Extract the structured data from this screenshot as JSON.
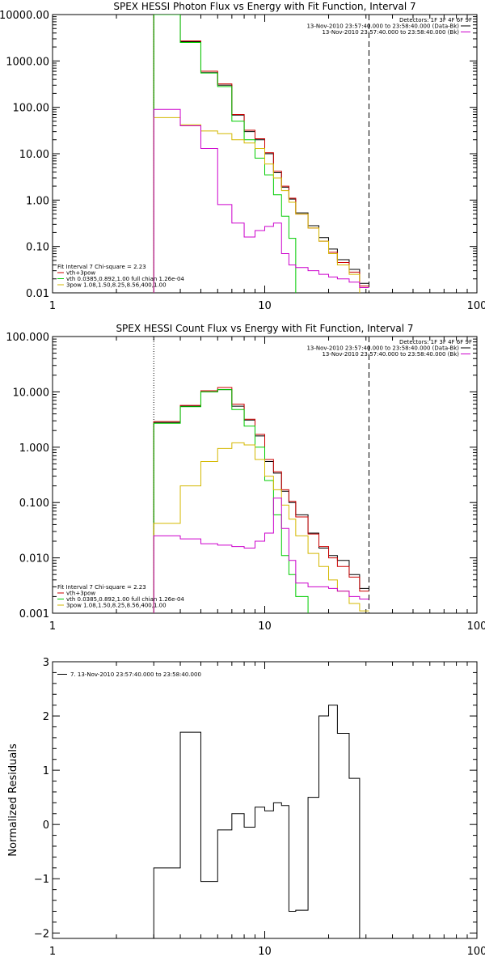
{
  "colors": {
    "black": "#000000",
    "red": "#cc0000",
    "green": "#00cc00",
    "yellow": "#d4b800",
    "magenta": "#cc00cc",
    "background": "#ffffff"
  },
  "chart_data": [
    {
      "type": "line",
      "title": "SPEX HESSI Photon Flux vs Energy with Fit Function, Interval 7",
      "xscale": "log",
      "yscale": "log",
      "xlim": [
        1,
        100
      ],
      "ylim": [
        0.01,
        10000
      ],
      "xticks": [
        {
          "v": 1,
          "label": "1"
        },
        {
          "v": 10,
          "label": "10"
        },
        {
          "v": 100,
          "label": "100"
        }
      ],
      "yticks": [
        {
          "v": 10000,
          "label": "10000.00"
        },
        {
          "v": 1000,
          "label": "1000.00"
        },
        {
          "v": 100,
          "label": "100.00"
        },
        {
          "v": 10,
          "label": "10.00"
        },
        {
          "v": 1,
          "label": "1.00"
        },
        {
          "v": 0.1,
          "label": "0.10"
        },
        {
          "v": 0.01,
          "label": "0.01"
        }
      ],
      "vlines": [
        {
          "x": 3,
          "style": "dotted"
        },
        {
          "x": 31,
          "style": "dashed"
        }
      ],
      "header_lines": [
        "Detectors: 1F 3F 4F 6F 9F",
        "13-Nov-2010 23:57:40.000 to 23:58:40.000 (Data-Bk)",
        "13-Nov-2010 23:57:40.000 to 23:58:40.000 (Bk)"
      ],
      "header_colors": [
        "",
        "black",
        "magenta"
      ],
      "legend": [
        "Fit Interval  7    Chi-square = 2.23",
        "vth+3pow",
        "vth 0.0385,0.892,1.00  full chian 1.26e-04",
        "3pow 1.08,1.50,8.25,8.56,400,1.00"
      ],
      "legend_colors": [
        "",
        "red",
        "green",
        "yellow"
      ],
      "edges": [
        3,
        4,
        5,
        6,
        7,
        8,
        9,
        10,
        11,
        12,
        13,
        14,
        16,
        18,
        20,
        22,
        25,
        28,
        31
      ],
      "series": [
        {
          "color": "black",
          "values": [
            10000,
            2600,
            560,
            300,
            68,
            30,
            20,
            10,
            3.9,
            1.9,
            1.05,
            0.53,
            0.28,
            0.155,
            0.088,
            0.052,
            0.032,
            0.016
          ]
        },
        {
          "color": "red",
          "values": [
            10000,
            2700,
            600,
            320,
            70,
            32,
            21,
            10.5,
            4.2,
            2.0,
            1.1,
            0.5,
            0.25,
            0.13,
            0.075,
            0.045,
            0.028,
            0.014
          ]
        },
        {
          "color": "green",
          "values": [
            10000,
            2500,
            550,
            280,
            50,
            20,
            8,
            3.5,
            1.3,
            0.45,
            0.15,
            0.008,
            0.008,
            0.008,
            0.008,
            0.008,
            0.008,
            0.008
          ]
        },
        {
          "color": "yellow",
          "values": [
            60,
            42,
            31,
            27,
            20,
            17,
            13,
            6,
            3,
            1.6,
            0.9,
            0.5,
            0.25,
            0.13,
            0.07,
            0.04,
            0.025,
            0.009
          ]
        },
        {
          "color": "magenta",
          "values": [
            90,
            40,
            13,
            0.8,
            0.32,
            0.16,
            0.22,
            0.27,
            0.32,
            0.07,
            0.04,
            0.035,
            0.03,
            0.025,
            0.022,
            0.02,
            0.017,
            0.013
          ]
        }
      ]
    },
    {
      "type": "line",
      "title": "SPEX HESSI Count Flux vs Energy with Fit Function, Interval 7",
      "xscale": "log",
      "yscale": "log",
      "xlim": [
        1,
        100
      ],
      "ylim": [
        0.001,
        100
      ],
      "xticks": [
        {
          "v": 1,
          "label": "1"
        },
        {
          "v": 10,
          "label": "10"
        },
        {
          "v": 100,
          "label": "100"
        }
      ],
      "yticks": [
        {
          "v": 100,
          "label": "100.000"
        },
        {
          "v": 10,
          "label": "10.000"
        },
        {
          "v": 1,
          "label": "1.000"
        },
        {
          "v": 0.1,
          "label": "0.100"
        },
        {
          "v": 0.01,
          "label": "0.010"
        },
        {
          "v": 0.001,
          "label": "0.001"
        }
      ],
      "vlines": [
        {
          "x": 3,
          "style": "dotted"
        },
        {
          "x": 31,
          "style": "dashed"
        }
      ],
      "header_lines": [
        "Detectors: 1F 3F 4F 6F 9F",
        "13-Nov-2010 23:57:40.000 to 23:58:40.000 (Data-Bk)",
        "13-Nov-2010 23:57:40.000 to 23:58:40.000 (Bk)"
      ],
      "header_colors": [
        "",
        "black",
        "magenta"
      ],
      "legend": [
        "Fit Interval  7    Chi-square = 2.23",
        "vth+3pow",
        "vth 0.0385,0.892,1.00  full chian 1.26e-04",
        "3pow 1.08,1.50,8.25,8.56,400,1.00"
      ],
      "legend_colors": [
        "",
        "red",
        "green",
        "yellow"
      ],
      "edges": [
        3,
        4,
        5,
        6,
        7,
        8,
        9,
        10,
        11,
        12,
        13,
        14,
        16,
        18,
        20,
        22,
        25,
        28,
        31
      ],
      "series": [
        {
          "color": "black",
          "values": [
            2.8,
            5.5,
            10,
            11,
            5.5,
            3.1,
            1.6,
            0.55,
            0.34,
            0.16,
            0.1,
            0.06,
            0.028,
            0.015,
            0.011,
            0.009,
            0.005,
            0.0028
          ]
        },
        {
          "color": "red",
          "values": [
            2.9,
            5.7,
            10.5,
            12,
            6,
            3.2,
            1.7,
            0.6,
            0.36,
            0.17,
            0.105,
            0.055,
            0.027,
            0.016,
            0.01,
            0.007,
            0.0045,
            0.0025
          ]
        },
        {
          "color": "green",
          "values": [
            2.7,
            5.4,
            10,
            11,
            4.8,
            2.4,
            1.0,
            0.25,
            0.06,
            0.011,
            0.005,
            0.002,
            0.0008,
            0.0008,
            0.0008,
            0.0008,
            0.0008,
            0.0008
          ]
        },
        {
          "color": "yellow",
          "values": [
            0.042,
            0.2,
            0.55,
            0.95,
            1.2,
            1.1,
            0.6,
            0.3,
            0.17,
            0.09,
            0.05,
            0.025,
            0.012,
            0.007,
            0.004,
            0.0025,
            0.0015,
            0.0011
          ]
        },
        {
          "color": "magenta",
          "values": [
            0.025,
            0.022,
            0.018,
            0.017,
            0.016,
            0.015,
            0.02,
            0.028,
            0.12,
            0.034,
            0.009,
            0.0035,
            0.003,
            0.003,
            0.0028,
            0.0025,
            0.002,
            0.0018
          ]
        }
      ]
    },
    {
      "type": "line",
      "title": "",
      "xscale": "log",
      "yscale": "linear",
      "xlim": [
        1,
        100
      ],
      "ylim": [
        -2.1,
        3
      ],
      "ylabel": "Normalized Residuals",
      "xticks": [
        {
          "v": 1,
          "label": "1"
        },
        {
          "v": 10,
          "label": "10"
        },
        {
          "v": 100,
          "label": "100"
        }
      ],
      "yticks": [
        {
          "v": 3,
          "label": "3"
        },
        {
          "v": 2,
          "label": "2"
        },
        {
          "v": 1,
          "label": "1"
        },
        {
          "v": 0,
          "label": "0"
        },
        {
          "v": -1,
          "label": "−1"
        },
        {
          "v": -2,
          "label": "−2"
        }
      ],
      "legend": [
        "7. 13-Nov-2010 23:57:40.000 to 23:58:40.000"
      ],
      "legend_colors": [
        "black"
      ],
      "edges": [
        3,
        4,
        5,
        6,
        7,
        8,
        9,
        10,
        11,
        12,
        13,
        14,
        16,
        18,
        20,
        22,
        25,
        28,
        31
      ],
      "series": [
        {
          "color": "black",
          "values": [
            -0.8,
            1.7,
            -1.05,
            -0.1,
            0.2,
            -0.05,
            0.32,
            0.25,
            0.4,
            0.35,
            -1.6,
            -1.58,
            0.5,
            2.0,
            2.2,
            1.68,
            0.85,
            -2.3
          ]
        }
      ]
    }
  ]
}
